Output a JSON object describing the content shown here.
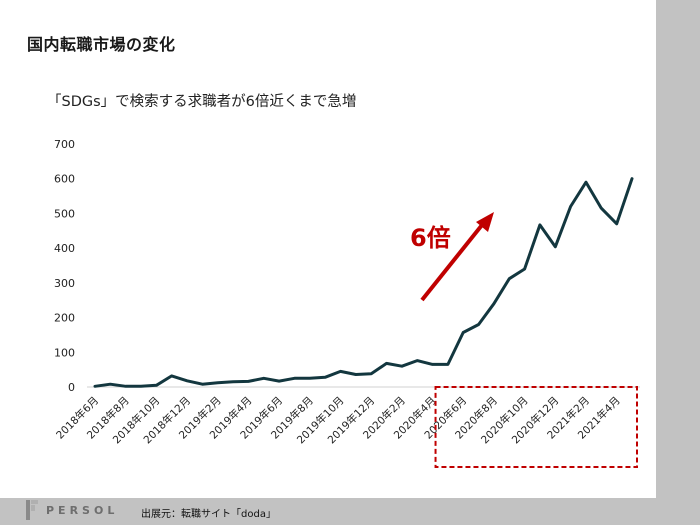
{
  "slide": {
    "title": "国内転職市場の変化",
    "subtitle": "「SDGs」で検索する求職者が6倍近くまで急増"
  },
  "annotation": {
    "label": "6倍",
    "color": "#c00000"
  },
  "footer": {
    "logo_text": "PERSOL",
    "source": "出展元：転職サイト「doda」"
  },
  "colors": {
    "line": "#13373f",
    "axis": "#d0d0d0",
    "highlight": "#c00000"
  },
  "chart_data": {
    "type": "line",
    "ylim": [
      0,
      700
    ],
    "yticks": [
      0,
      100,
      200,
      300,
      400,
      500,
      600,
      700
    ],
    "x": [
      "2018年6月",
      "2018年7月",
      "2018年8月",
      "2018年9月",
      "2018年10月",
      "2018年11月",
      "2018年12月",
      "2019年1月",
      "2019年2月",
      "2019年3月",
      "2019年4月",
      "2019年5月",
      "2019年6月",
      "2019年7月",
      "2019年8月",
      "2019年9月",
      "2019年10月",
      "2019年11月",
      "2019年12月",
      "2020年1月",
      "2020年2月",
      "2020年3月",
      "2020年4月",
      "2020年5月",
      "2020年6月",
      "2020年7月",
      "2020年8月",
      "2020年9月",
      "2020年10月",
      "2020年11月",
      "2020年12月",
      "2021年1月",
      "2021年2月",
      "2021年3月",
      "2021年4月",
      "2021年5月"
    ],
    "tick_labels": [
      "2018年6月",
      "2018年8月",
      "2018年10月",
      "2018年12月",
      "2019年2月",
      "2019年4月",
      "2019年6月",
      "2019年8月",
      "2019年10月",
      "2019年12月",
      "2020年2月",
      "2020年4月",
      "2020年6月",
      "2020年8月",
      "2020年10月",
      "2020年12月",
      "2021年2月",
      "2021年4月"
    ],
    "series": [
      {
        "values": [
          2,
          8,
          2,
          2,
          5,
          32,
          18,
          8,
          12,
          15,
          16,
          25,
          17,
          25,
          25,
          28,
          45,
          36,
          38,
          68,
          60,
          76,
          65,
          65,
          157,
          180,
          240,
          312,
          340,
          467,
          404,
          520,
          590,
          515,
          470,
          600
        ]
      }
    ],
    "grid": false,
    "highlight_region": {
      "from": "2020年4月",
      "to": "2021年5月"
    }
  }
}
